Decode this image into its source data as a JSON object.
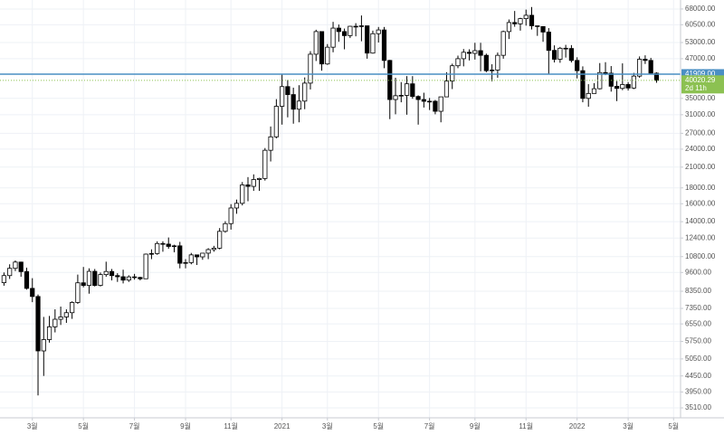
{
  "chart_data": {
    "type": "candlestick",
    "log_scale": true,
    "grid": true,
    "up_color": "#ffffff",
    "down_color": "#000000",
    "categories": [
      null,
      null,
      null,
      null,
      null,
      "3월",
      null,
      null,
      null,
      null,
      null,
      null,
      null,
      null,
      "5월",
      null,
      null,
      null,
      null,
      null,
      null,
      null,
      null,
      "7월",
      null,
      null,
      null,
      null,
      null,
      null,
      null,
      null,
      "9월",
      null,
      null,
      null,
      null,
      null,
      null,
      null,
      "11월",
      null,
      null,
      null,
      null,
      null,
      null,
      null,
      null,
      "2021",
      null,
      null,
      null,
      null,
      null,
      null,
      null,
      "3월",
      null,
      null,
      null,
      null,
      null,
      null,
      null,
      null,
      "5월",
      null,
      null,
      null,
      null,
      null,
      null,
      null,
      null,
      "7월",
      null,
      null,
      null,
      null,
      null,
      null,
      null,
      "9월",
      null,
      null,
      null,
      null,
      null,
      null,
      null,
      null,
      "11월",
      null,
      null,
      null,
      null,
      null,
      null,
      null,
      null,
      "2022",
      null,
      null,
      null,
      null,
      null,
      null,
      null,
      null,
      "3월",
      null,
      null,
      null,
      null,
      null,
      null,
      null,
      "5월"
    ],
    "open": [
      8900,
      9380,
      9900,
      10370,
      9660,
      8530,
      8030,
      5360,
      5830,
      6410,
      6780,
      6900,
      7120,
      7680,
      8890,
      8720,
      9680,
      8720,
      9450,
      9670,
      9380,
      9300,
      9070,
      9290,
      9250,
      9160,
      11000,
      11050,
      11900,
      11850,
      11650,
      11700,
      10280,
      10330,
      10940,
      10780,
      11080,
      11380,
      11500,
      13030,
      13800,
      15500,
      16050,
      18400,
      18200,
      19150,
      19300,
      23800,
      26300,
      33000,
      38200,
      36000,
      32300,
      34300,
      39200,
      48600,
      57500,
      45200,
      51200,
      59000,
      57500,
      55800,
      59800,
      59800,
      60000,
      49000,
      56600,
      58200,
      46400,
      34700,
      35700,
      35800,
      39000,
      35500,
      34700,
      34250,
      34260,
      31800,
      35400,
      39800,
      44600,
      47000,
      49300,
      48900,
      49900,
      48200,
      43000,
      43200,
      48200,
      57500,
      61500,
      60900,
      63300,
      64900,
      60000,
      59700,
      57300,
      50000,
      46800,
      50800,
      50700,
      46400,
      43000,
      35000,
      36300,
      37600,
      42400,
      42200,
      38300,
      37700,
      38800,
      37800,
      41300,
      46800,
      46400,
      42200,
      null,
      null,
      null
    ],
    "high": [
      9600,
      10200,
      10500,
      10400,
      9950,
      9200,
      8150,
      6900,
      6950,
      7300,
      7450,
      7300,
      7750,
      9450,
      10000,
      9900,
      9850,
      9600,
      10400,
      9850,
      9550,
      9800,
      9400,
      9500,
      9300,
      11050,
      11400,
      12100,
      12100,
      12450,
      11800,
      12050,
      10600,
      11100,
      10950,
      11100,
      11500,
      11700,
      13350,
      14050,
      15950,
      16500,
      18800,
      19500,
      19900,
      19400,
      24200,
      28400,
      34800,
      42000,
      40100,
      37900,
      38600,
      40900,
      49700,
      58300,
      57500,
      52400,
      61800,
      60600,
      58800,
      60000,
      61200,
      64800,
      60100,
      57900,
      59500,
      59500,
      46600,
      40800,
      39500,
      41300,
      41300,
      35800,
      36500,
      35100,
      34600,
      35400,
      42500,
      45300,
      48100,
      50500,
      50400,
      52900,
      52900,
      48800,
      45100,
      49200,
      57900,
      62900,
      67000,
      63700,
      67700,
      69000,
      60000,
      59800,
      59000,
      51900,
      51300,
      52100,
      52000,
      47500,
      44400,
      38900,
      39200,
      45500,
      45800,
      44500,
      39800,
      45400,
      39500,
      42300,
      47800,
      48200,
      47300,
      42500,
      null,
      null,
      null
    ],
    "low": [
      8700,
      9150,
      9700,
      9300,
      8450,
      7700,
      3850,
      4450,
      5700,
      6150,
      6500,
      6600,
      6800,
      7600,
      8600,
      8200,
      8650,
      8650,
      9300,
      9050,
      8950,
      8850,
      8950,
      9100,
      9050,
      9150,
      10600,
      10950,
      11200,
      11450,
      11150,
      9900,
      9900,
      10200,
      10150,
      10550,
      10600,
      11200,
      11400,
      12900,
      13200,
      14850,
      15800,
      16300,
      17600,
      17600,
      19000,
      21900,
      26000,
      28800,
      30400,
      29000,
      29300,
      32300,
      37400,
      46200,
      43000,
      44900,
      49300,
      53300,
      50400,
      54800,
      55500,
      53500,
      47000,
      48800,
      53000,
      43800,
      30000,
      31100,
      34000,
      31000,
      34900,
      28800,
      32700,
      32100,
      31100,
      29300,
      35300,
      37500,
      43800,
      44400,
      46400,
      46700,
      42800,
      42500,
      39700,
      40800,
      47000,
      54400,
      59600,
      57900,
      60100,
      58400,
      55700,
      53300,
      42000,
      45700,
      45600,
      47400,
      45700,
      40600,
      34000,
      32900,
      36300,
      37400,
      41600,
      36800,
      34300,
      37200,
      37100,
      37500,
      40800,
      45200,
      42100,
      39300,
      null,
      null,
      null
    ],
    "close": [
      9380,
      9900,
      10370,
      9660,
      8530,
      8030,
      5360,
      5830,
      6410,
      6780,
      6900,
      7120,
      7680,
      8890,
      8720,
      9680,
      8720,
      9450,
      9670,
      9380,
      9300,
      9070,
      9290,
      9250,
      9160,
      11000,
      11050,
      11900,
      11850,
      11650,
      11700,
      10280,
      10330,
      10940,
      10780,
      11080,
      11380,
      11500,
      13030,
      13800,
      15500,
      16050,
      18400,
      18200,
      19150,
      19300,
      23800,
      26300,
      33000,
      38200,
      36000,
      32300,
      34300,
      39200,
      48600,
      57500,
      45200,
      51200,
      59000,
      57500,
      55800,
      59800,
      59800,
      60000,
      49000,
      56600,
      58200,
      46400,
      34700,
      35700,
      35800,
      39000,
      35500,
      34700,
      34250,
      34260,
      31800,
      35400,
      39800,
      44600,
      47000,
      49300,
      48900,
      49900,
      48200,
      43000,
      43200,
      48200,
      57500,
      61500,
      60900,
      63300,
      64900,
      60000,
      59700,
      57300,
      50000,
      46800,
      50800,
      50700,
      46400,
      43000,
      35000,
      36300,
      37600,
      42400,
      42200,
      38300,
      37700,
      38800,
      37800,
      41300,
      46800,
      46400,
      42200,
      40020.29,
      null,
      null,
      null
    ],
    "ylim": [
      3260,
      72700
    ],
    "yticks": [
      {
        "value": 68000,
        "label": "68000.00"
      },
      {
        "value": 60500,
        "label": "60500.00"
      },
      {
        "value": 53000,
        "label": "53000.00"
      },
      {
        "value": 47000,
        "label": "47000.00"
      },
      {
        "value": 35000,
        "label": "35000.00"
      },
      {
        "value": 31000,
        "label": "31000.00"
      },
      {
        "value": 27000,
        "label": "27000.00"
      },
      {
        "value": 24000,
        "label": "24000.00"
      },
      {
        "value": 21000,
        "label": "21000.00"
      },
      {
        "value": 18000,
        "label": "18000.00"
      },
      {
        "value": 16000,
        "label": "16000.00"
      },
      {
        "value": 14000,
        "label": "14000.00"
      },
      {
        "value": 12400,
        "label": "12400.00"
      },
      {
        "value": 10800,
        "label": "10800.00"
      },
      {
        "value": 9600,
        "label": "9600.00"
      },
      {
        "value": 8350,
        "label": "8350.00"
      },
      {
        "value": 7350,
        "label": "7350.00"
      },
      {
        "value": 6550,
        "label": "6550.00"
      },
      {
        "value": 5750,
        "label": "5750.00"
      },
      {
        "value": 5050,
        "label": "5050.00"
      },
      {
        "value": 4450,
        "label": "4450.00"
      },
      {
        "value": 3950,
        "label": "3950.00"
      },
      {
        "value": 3510,
        "label": "3510.00"
      }
    ],
    "hline": {
      "value": 41909,
      "label": "41909.00",
      "color": "#4a8fc4"
    },
    "last_price": 40020.29,
    "last_price_color": "#8cc152",
    "countdown": "2d 11h"
  }
}
